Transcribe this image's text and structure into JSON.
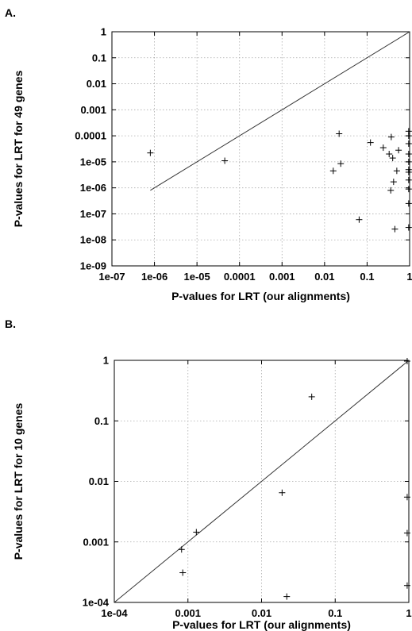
{
  "chart_data": [
    {
      "panel_label": "A.",
      "type": "scatter",
      "xlabel": "P-values for LRT (our alignments)",
      "ylabel": "P-values for LRT for 49 genes",
      "x_scale": "log",
      "y_scale": "log",
      "xlim": [
        1e-07,
        1
      ],
      "ylim": [
        1e-09,
        1
      ],
      "x_ticks": [
        {
          "value": 1e-07,
          "label": "1e-07"
        },
        {
          "value": 1e-06,
          "label": "1e-06"
        },
        {
          "value": 1e-05,
          "label": "1e-05"
        },
        {
          "value": 0.0001,
          "label": "0.0001"
        },
        {
          "value": 0.001,
          "label": "0.001"
        },
        {
          "value": 0.01,
          "label": "0.01"
        },
        {
          "value": 0.1,
          "label": "0.1"
        },
        {
          "value": 1,
          "label": "1"
        }
      ],
      "y_ticks": [
        {
          "value": 1e-09,
          "label": "1e-09"
        },
        {
          "value": 1e-08,
          "label": "1e-08"
        },
        {
          "value": 1e-07,
          "label": "1e-07"
        },
        {
          "value": 1e-06,
          "label": "1e-06"
        },
        {
          "value": 1e-05,
          "label": "1e-05"
        },
        {
          "value": 0.0001,
          "label": "0.0001"
        },
        {
          "value": 0.001,
          "label": "0.001"
        },
        {
          "value": 0.01,
          "label": "0.01"
        },
        {
          "value": 0.1,
          "label": "0.1"
        },
        {
          "value": 1,
          "label": "1"
        }
      ],
      "grid": true,
      "reference_line": {
        "from": [
          8e-07,
          8e-07
        ],
        "to": [
          1,
          1
        ]
      },
      "points": [
        {
          "x": 8e-07,
          "y": 2.2e-05
        },
        {
          "x": 4.5e-05,
          "y": 1.1e-05
        },
        {
          "x": 0.016,
          "y": 4.5e-06
        },
        {
          "x": 0.022,
          "y": 0.00012
        },
        {
          "x": 0.024,
          "y": 8.5e-06
        },
        {
          "x": 0.065,
          "y": 6e-08
        },
        {
          "x": 0.12,
          "y": 5.5e-05
        },
        {
          "x": 0.24,
          "y": 3.5e-05
        },
        {
          "x": 0.33,
          "y": 2e-05
        },
        {
          "x": 0.37,
          "y": 9e-05
        },
        {
          "x": 0.36,
          "y": 8e-07
        },
        {
          "x": 0.4,
          "y": 1.4e-05
        },
        {
          "x": 0.42,
          "y": 1.7e-06
        },
        {
          "x": 0.45,
          "y": 2.6e-08
        },
        {
          "x": 0.5,
          "y": 4.5e-06
        },
        {
          "x": 0.55,
          "y": 2.8e-05
        },
        {
          "x": 0.95,
          "y": 0.00015
        },
        {
          "x": 0.95,
          "y": 0.0001
        },
        {
          "x": 0.95,
          "y": 5e-05
        },
        {
          "x": 0.95,
          "y": 2e-05
        },
        {
          "x": 0.95,
          "y": 1e-05
        },
        {
          "x": 0.95,
          "y": 5e-06
        },
        {
          "x": 0.95,
          "y": 4e-06
        },
        {
          "x": 0.95,
          "y": 2e-06
        },
        {
          "x": 0.95,
          "y": 9e-07
        },
        {
          "x": 0.95,
          "y": 2.5e-07
        },
        {
          "x": 0.95,
          "y": 3e-08
        }
      ]
    },
    {
      "panel_label": "B.",
      "type": "scatter",
      "xlabel": "P-values for LRT (our alignments)",
      "ylabel": "P-values for LRT for 10 genes",
      "x_scale": "log",
      "y_scale": "log",
      "xlim": [
        0.0001,
        1
      ],
      "ylim": [
        0.0001,
        1
      ],
      "x_ticks": [
        {
          "value": 0.0001,
          "label": "1e-04"
        },
        {
          "value": 0.001,
          "label": "0.001"
        },
        {
          "value": 0.01,
          "label": "0.01"
        },
        {
          "value": 0.1,
          "label": "0.1"
        },
        {
          "value": 1,
          "label": "1"
        }
      ],
      "y_ticks": [
        {
          "value": 0.0001,
          "label": "1e-04"
        },
        {
          "value": 0.001,
          "label": "0.001"
        },
        {
          "value": 0.01,
          "label": "0.01"
        },
        {
          "value": 0.1,
          "label": "0.1"
        },
        {
          "value": 1,
          "label": "1"
        }
      ],
      "grid": true,
      "reference_line": {
        "from": [
          0.0001,
          0.0001
        ],
        "to": [
          1,
          1
        ]
      },
      "points": [
        {
          "x": 0.00082,
          "y": 0.00075
        },
        {
          "x": 0.00085,
          "y": 0.00031
        },
        {
          "x": 0.0013,
          "y": 0.00145
        },
        {
          "x": 0.019,
          "y": 0.0065
        },
        {
          "x": 0.022,
          "y": 0.000125
        },
        {
          "x": 0.048,
          "y": 0.25
        },
        {
          "x": 0.95,
          "y": 0.97
        },
        {
          "x": 0.95,
          "y": 0.0055
        },
        {
          "x": 0.95,
          "y": 0.0014
        },
        {
          "x": 0.95,
          "y": 0.00019
        }
      ]
    }
  ]
}
